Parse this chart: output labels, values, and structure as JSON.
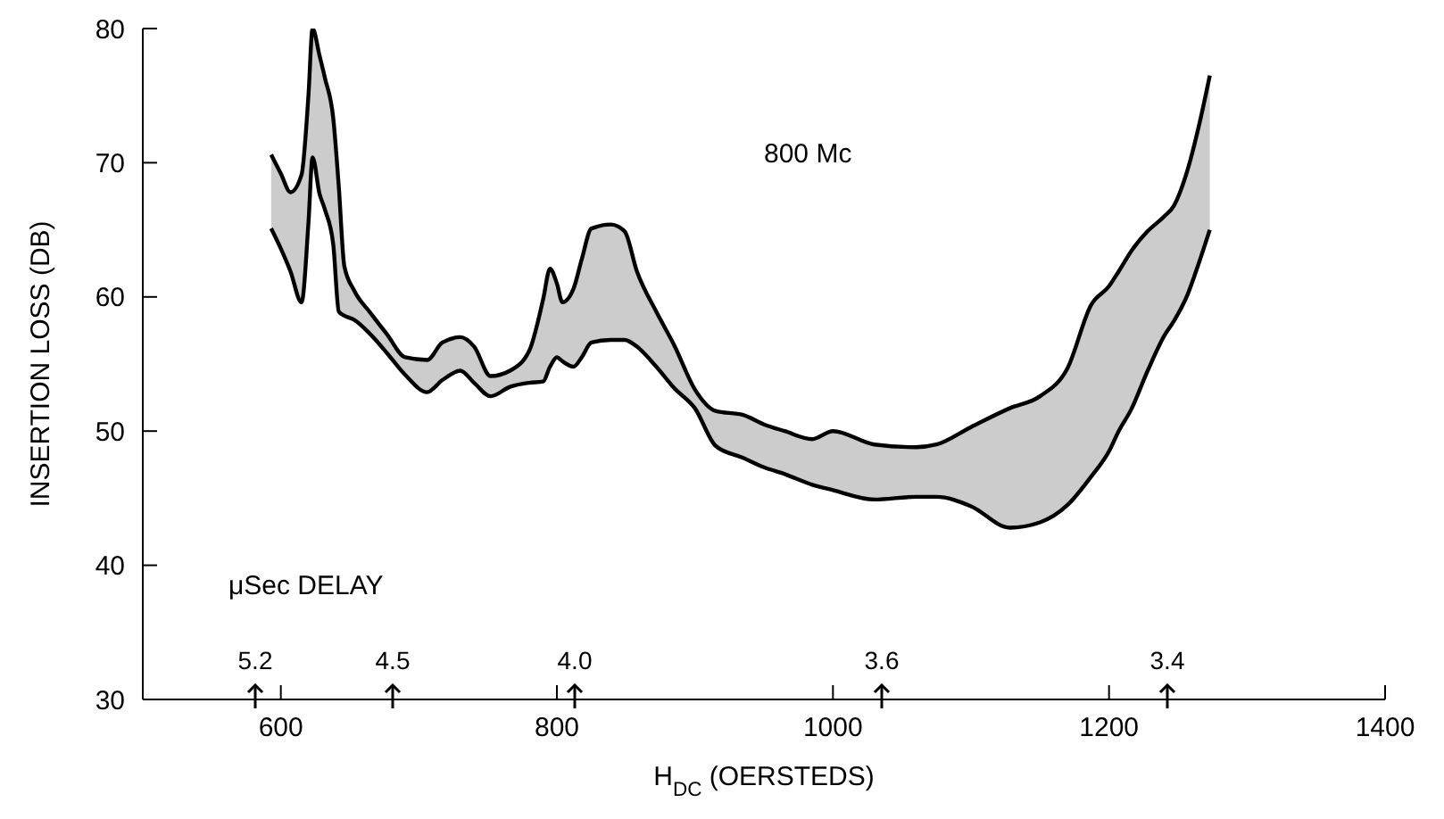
{
  "chart_data": {
    "type": "line",
    "xlabel": "H$_{DC}$ (OERSTEDS)",
    "ylabel": "INSERTION LOSS (DB)",
    "x": [
      593,
      600,
      607,
      615,
      620,
      623,
      628,
      632,
      638,
      642,
      646,
      653,
      665,
      677,
      690,
      706,
      717,
      730,
      740,
      752,
      766,
      780,
      790,
      795,
      800,
      804,
      812,
      818,
      825,
      839,
      849,
      858,
      872,
      885,
      900,
      915,
      935,
      950,
      965,
      985,
      1000,
      1030,
      1060,
      1075,
      1100,
      1128,
      1150,
      1170,
      1187,
      1200,
      1207,
      1216,
      1228,
      1240,
      1247,
      1257,
      1265,
      1273
    ],
    "series": [
      {
        "color": "#000000",
        "lower": [
          65.1,
          63.6,
          61.9,
          59.6,
          65.5,
          70.4,
          67.7,
          66.5,
          63.9,
          58.9,
          58.6,
          58.3,
          57.2,
          55.8,
          54.2,
          52.9,
          53.8,
          54.5,
          53.6,
          52.6,
          53.3,
          53.6,
          53.7,
          54.8,
          55.5,
          55.2,
          54.8,
          55.5,
          56.6,
          56.8,
          56.8,
          56.3,
          54.8,
          53.2,
          51.7,
          48.9,
          48.0,
          47.3,
          46.8,
          46.0,
          45.6,
          44.9,
          45.1,
          45.1,
          44.4,
          42.8,
          43.2,
          44.5,
          46.6,
          48.5,
          50.0,
          51.6,
          54.5,
          57.1,
          58.2,
          60.2,
          62.5,
          65.0
        ],
        "upper": [
          70.6,
          69.2,
          67.8,
          69.1,
          75.0,
          80.0,
          78.0,
          76.3,
          73.3,
          68.2,
          62.3,
          60.5,
          58.8,
          57.2,
          55.5,
          55.3,
          56.6,
          57.0,
          56.3,
          54.1,
          54.5,
          56.0,
          59.8,
          62.1,
          61.0,
          59.6,
          60.6,
          62.8,
          65.1,
          65.4,
          64.9,
          61.9,
          58.9,
          56.4,
          53.1,
          51.5,
          51.2,
          50.5,
          50.0,
          49.4,
          50.0,
          49.0,
          48.8,
          49.0,
          50.3,
          51.7,
          52.6,
          54.7,
          59.4,
          60.8,
          61.9,
          63.4,
          64.9,
          66.0,
          66.8,
          69.5,
          72.7,
          76.5
        ],
        "values": [
          70.6,
          69.2,
          67.8,
          69.1,
          75.0,
          80.0,
          78.0,
          76.3,
          73.3,
          68.2,
          62.3,
          60.5,
          58.8,
          57.2,
          55.5,
          55.3,
          56.6,
          57.0,
          56.3,
          54.1,
          54.5,
          56.0,
          59.8,
          62.1,
          61.0,
          59.6,
          60.6,
          62.8,
          65.1,
          65.4,
          64.9,
          61.9,
          58.9,
          56.4,
          53.1,
          51.5,
          51.2,
          50.5,
          50.0,
          49.4,
          50.0,
          49.0,
          48.8,
          49.0,
          50.3,
          51.7,
          52.6,
          54.7,
          59.4,
          60.8,
          61.9,
          63.4,
          64.9,
          66.0,
          66.8,
          69.5,
          72.7,
          76.5
        ]
      },
      {
        "color": "#000000",
        "values": [
          65.1,
          63.6,
          61.9,
          59.6,
          65.5,
          70.4,
          67.7,
          66.5,
          63.9,
          58.9,
          58.6,
          58.3,
          57.2,
          55.8,
          54.2,
          52.9,
          53.8,
          54.5,
          53.6,
          52.6,
          53.3,
          53.6,
          53.7,
          54.8,
          55.5,
          55.2,
          54.8,
          55.5,
          56.6,
          56.8,
          56.8,
          56.3,
          54.8,
          53.2,
          51.7,
          48.9,
          48.0,
          47.3,
          46.8,
          46.0,
          45.6,
          44.9,
          45.1,
          45.1,
          44.4,
          42.8,
          43.2,
          44.5,
          46.6,
          48.5,
          50.0,
          51.6,
          54.5,
          57.1,
          58.2,
          60.2,
          62.5,
          65.0
        ]
      }
    ],
    "xlim": [
      500,
      1400
    ],
    "xticks": [
      600,
      800,
      1000,
      1200,
      1400
    ],
    "ylim": [
      30,
      80
    ],
    "yticks": [
      30,
      40,
      50,
      60,
      70,
      80
    ],
    "grid": false,
    "legend": false,
    "annotations": [
      "800 Mc",
      "μSec DELAY",
      "5.2",
      "4.5",
      "4.0",
      "3.6",
      "3.4"
    ]
  }
}
